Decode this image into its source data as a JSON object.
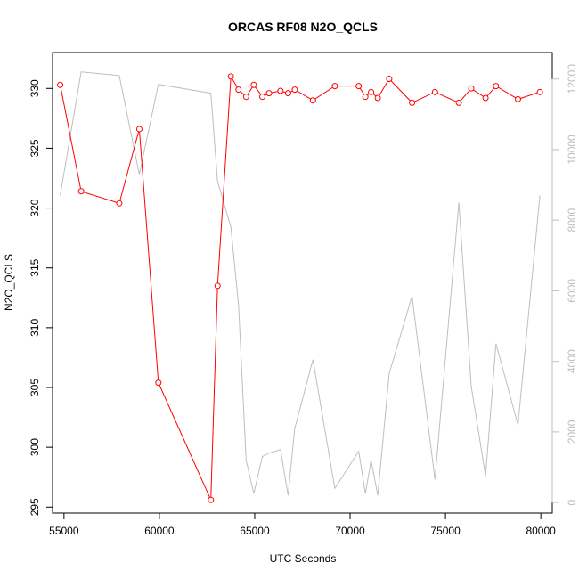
{
  "chart_data": {
    "type": "line",
    "title": "ORCAS RF08 N2O_QCLS",
    "xlabel": "UTC Seconds",
    "ylabel": "N2O_QCLS",
    "xlim": [
      54400,
      80600
    ],
    "ylim": [
      294.5,
      333.0
    ],
    "y2lim": [
      -300,
      12750
    ],
    "x_ticks": [
      55000,
      60000,
      65000,
      70000,
      75000,
      80000
    ],
    "y_ticks": [
      295,
      300,
      305,
      310,
      315,
      320,
      325,
      330
    ],
    "y2_ticks": [
      0,
      2000,
      4000,
      6000,
      8000,
      10000,
      12000
    ],
    "x_tick_labels": [
      "55000",
      "60000",
      "65000",
      "70000",
      "75000",
      "80000"
    ],
    "y_tick_labels": [
      "295",
      "300",
      "305",
      "310",
      "315",
      "320",
      "325",
      "330"
    ],
    "y2_tick_labels": [
      "0",
      "2000",
      "4000",
      "6000",
      "8000",
      "10000",
      "12000"
    ],
    "colors": {
      "primary": "#ff0000",
      "secondary": "#bebebe",
      "axis": "#000000",
      "secondary_axis": "#bebebe"
    },
    "series": [
      {
        "axis": "left",
        "style": "line+points",
        "color": "#ff0000",
        "x": [
          54800,
          55900,
          57900,
          58950,
          59950,
          62700,
          63050,
          63750,
          64150,
          64550,
          64950,
          65400,
          65750,
          66350,
          66750,
          67100,
          68050,
          69200,
          70450,
          70800,
          71100,
          71450,
          72050,
          73250,
          74450,
          75700,
          76350,
          77100,
          77650,
          78800,
          79950
        ],
        "y": [
          330.3,
          321.4,
          320.4,
          326.6,
          305.4,
          295.6,
          313.5,
          331.0,
          329.9,
          329.3,
          330.3,
          329.3,
          329.6,
          329.8,
          329.6,
          329.9,
          329.0,
          330.2,
          330.2,
          329.3,
          329.7,
          329.2,
          330.8,
          328.8,
          329.7,
          328.8,
          330.0,
          329.2,
          330.2,
          329.1,
          329.7
        ]
      },
      {
        "axis": "right",
        "style": "line",
        "color": "#bebebe",
        "x": [
          54800,
          55900,
          57900,
          58950,
          59950,
          62700,
          63050,
          63750,
          64150,
          64550,
          64950,
          65400,
          65750,
          66350,
          66750,
          67100,
          68050,
          69200,
          70450,
          70800,
          71100,
          71450,
          72050,
          73250,
          74450,
          75700,
          76350,
          77100,
          77650,
          78800,
          79950
        ],
        "y": [
          8700,
          12200,
          12100,
          9300,
          11850,
          11600,
          9100,
          7800,
          5600,
          1200,
          250,
          1300,
          1400,
          1500,
          200,
          2100,
          4050,
          400,
          1450,
          250,
          1200,
          200,
          3650,
          5850,
          650,
          8500,
          3300,
          750,
          4500,
          2200,
          8700
        ]
      }
    ]
  }
}
